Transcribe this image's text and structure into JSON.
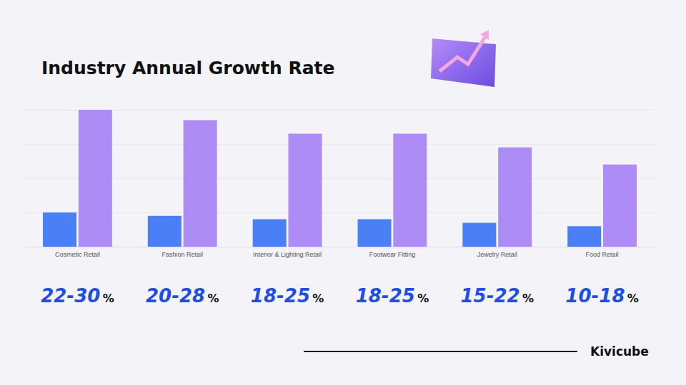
{
  "chart_data": {
    "type": "bar",
    "title": "Industry Annual Growth Rate",
    "categories": [
      "Cosmetic Retail",
      "Fashion Retail",
      "Interior & Lighting Retail",
      "Footwear Fitting",
      "Jewelry Retail",
      "Food Retail"
    ],
    "series": [
      {
        "color": "#4a7ff5",
        "values": [
          1.0,
          0.9,
          0.8,
          0.8,
          0.7,
          0.6
        ]
      },
      {
        "color": "#ad8cf5",
        "values": [
          4.0,
          3.7,
          3.3,
          3.3,
          2.9,
          2.4
        ]
      }
    ],
    "ylim": [
      0,
      4
    ],
    "yticks": [
      0,
      1,
      2,
      3,
      4
    ],
    "grid": true,
    "tick_labels": "x",
    "annotations": [
      {
        "text": "22-30",
        "unit": "%"
      },
      {
        "text": "20-28",
        "unit": "%"
      },
      {
        "text": "18-25",
        "unit": "%"
      },
      {
        "text": "18-25",
        "unit": "%"
      },
      {
        "text": "15-22",
        "unit": "%"
      },
      {
        "text": "10-18",
        "unit": "%"
      }
    ],
    "footer": "Kivicube"
  }
}
